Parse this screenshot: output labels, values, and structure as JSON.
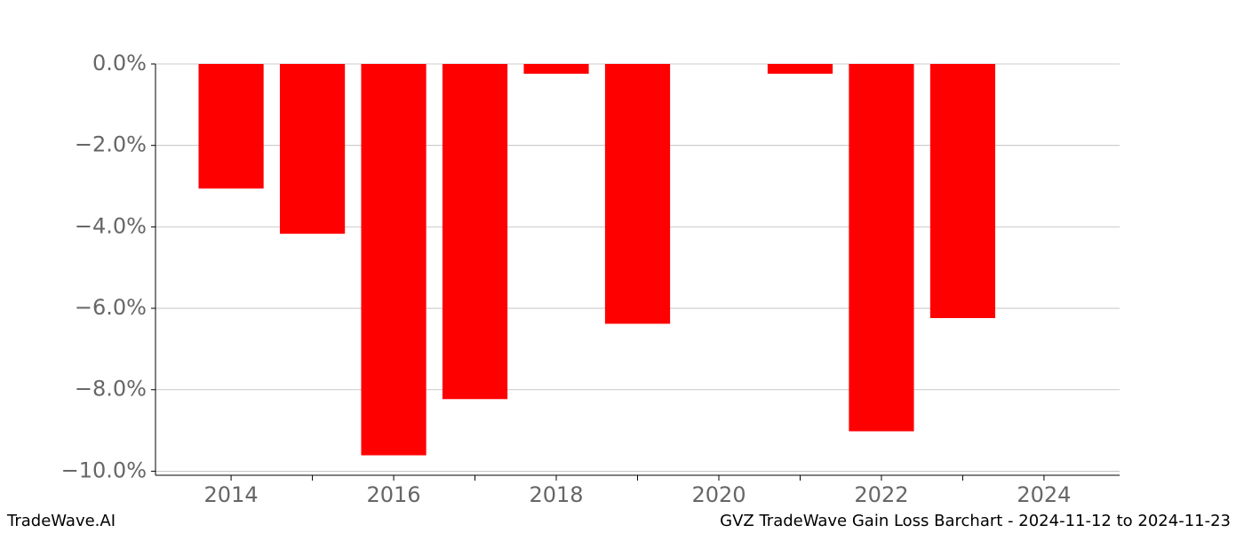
{
  "chart_data": {
    "type": "bar",
    "x": [
      2014,
      2015,
      2016,
      2017,
      2018,
      2019,
      2020,
      2021,
      2022,
      2023
    ],
    "values": [
      -3.06,
      -4.17,
      -9.61,
      -8.23,
      -0.24,
      -6.38,
      null,
      -0.24,
      -9.02,
      -6.24
    ],
    "color": "#ff0000",
    "xlim": [
      2013.07,
      2024.93
    ],
    "xticks": [
      2014,
      2016,
      2018,
      2020,
      2022,
      2024
    ],
    "xminor_ticks": [
      2015,
      2017,
      2019,
      2021,
      2023
    ],
    "ylim": [
      -10.1,
      0
    ],
    "yticks": [
      {
        "value": 0,
        "label": "0.0%"
      },
      {
        "value": -2,
        "label": "−2.0%"
      },
      {
        "value": -4,
        "label": "−4.0%"
      },
      {
        "value": -6,
        "label": "−6.0%"
      },
      {
        "value": -8,
        "label": "−8.0%"
      },
      {
        "value": -10,
        "label": "−10.0%"
      }
    ],
    "grid": true,
    "footer_left": "TradeWave.AI",
    "footer_right": "GVZ TradeWave Gain Loss Barchart - 2024-11-12 to 2024-11-23"
  }
}
